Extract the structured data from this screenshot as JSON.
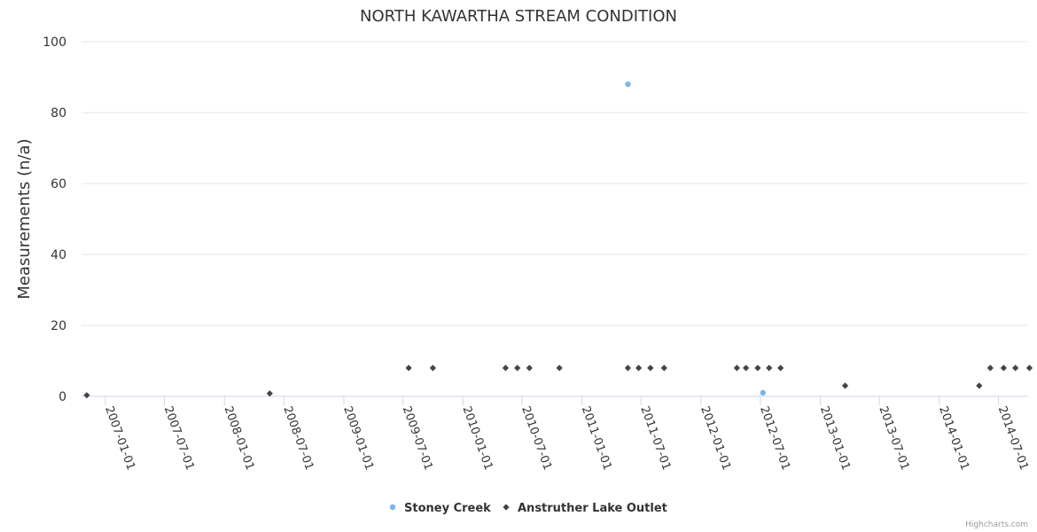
{
  "credits": "Highcharts.com",
  "chart_data": {
    "type": "scatter",
    "title": "NORTH KAWARTHA STREAM CONDITION",
    "ylabel": "Measurements (n/a)",
    "xlabel": "",
    "ylim": [
      0,
      100
    ],
    "yticks": [
      0,
      20,
      40,
      60,
      80,
      100
    ],
    "xlim": [
      "2006-10-20",
      "2014-09-30"
    ],
    "xticks": [
      "2007-01-01",
      "2007-07-01",
      "2008-01-01",
      "2008-07-01",
      "2009-01-01",
      "2009-07-01",
      "2010-01-01",
      "2010-07-01",
      "2011-01-01",
      "2011-07-01",
      "2012-01-01",
      "2012-07-01",
      "2013-01-01",
      "2013-07-01",
      "2014-01-01",
      "2014-07-01"
    ],
    "grid": true,
    "legend_position": "bottom-center",
    "series": [
      {
        "name": "Stoney Creek",
        "color": "#7cb5ec",
        "marker": "circle",
        "points": [
          {
            "x": "2011-05-22",
            "y": 88
          },
          {
            "x": "2012-07-09",
            "y": 1
          }
        ]
      },
      {
        "name": "Anstruther Lake Outlet",
        "color": "#434348",
        "marker": "diamond",
        "points": [
          {
            "x": "2006-11-05",
            "y": 0.3
          },
          {
            "x": "2008-05-19",
            "y": 0.8
          },
          {
            "x": "2009-07-19",
            "y": 8
          },
          {
            "x": "2009-10-01",
            "y": 8
          },
          {
            "x": "2010-05-12",
            "y": 8
          },
          {
            "x": "2010-06-17",
            "y": 8
          },
          {
            "x": "2010-07-24",
            "y": 8
          },
          {
            "x": "2010-10-24",
            "y": 8
          },
          {
            "x": "2011-05-22",
            "y": 8
          },
          {
            "x": "2011-06-24",
            "y": 8
          },
          {
            "x": "2011-07-30",
            "y": 8
          },
          {
            "x": "2011-09-10",
            "y": 8
          },
          {
            "x": "2012-04-20",
            "y": 8
          },
          {
            "x": "2012-05-18",
            "y": 8
          },
          {
            "x": "2012-06-23",
            "y": 8
          },
          {
            "x": "2012-07-28",
            "y": 8
          },
          {
            "x": "2012-09-01",
            "y": 8
          },
          {
            "x": "2013-03-18",
            "y": 3
          },
          {
            "x": "2014-05-03",
            "y": 3
          },
          {
            "x": "2014-06-06",
            "y": 8
          },
          {
            "x": "2014-07-17",
            "y": 8
          },
          {
            "x": "2014-08-22",
            "y": 8
          },
          {
            "x": "2014-10-04",
            "y": 8
          }
        ]
      }
    ]
  }
}
